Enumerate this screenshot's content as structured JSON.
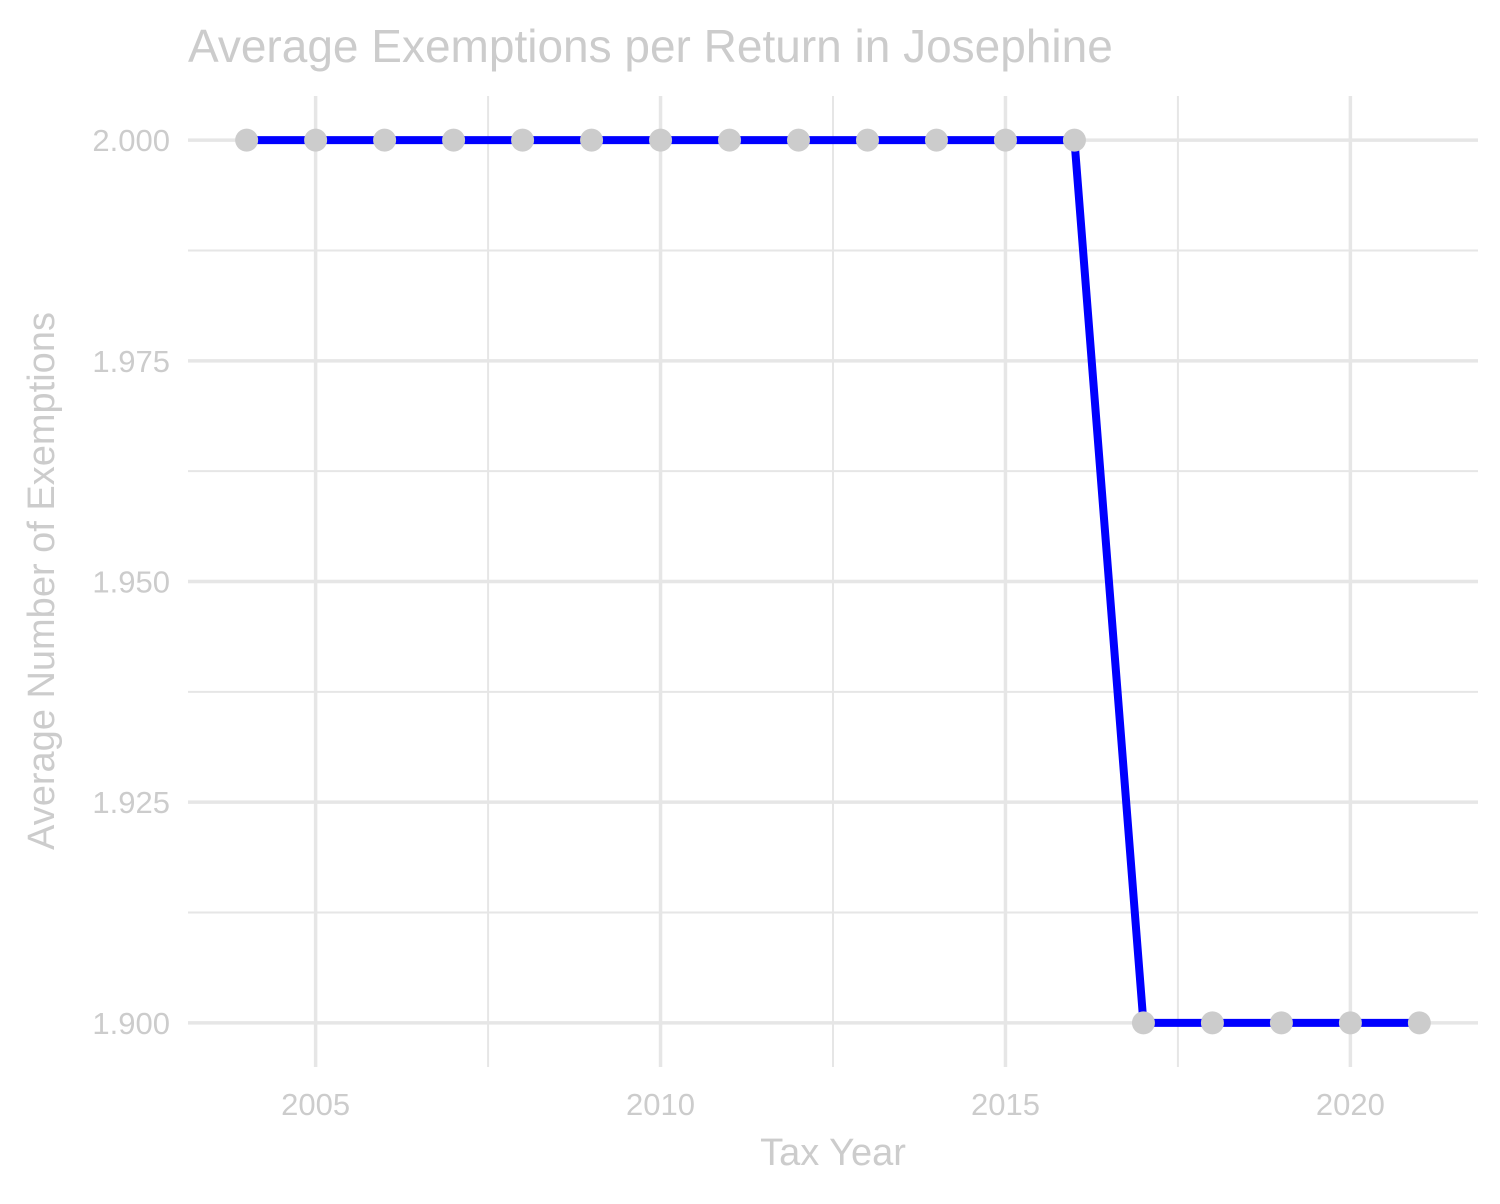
{
  "chart_data": {
    "type": "line",
    "title": "Average Exemptions per Return in Josephine",
    "xlabel": "Tax Year",
    "ylabel": "Average Number of Exemptions",
    "x": [
      2004,
      2005,
      2006,
      2007,
      2008,
      2009,
      2010,
      2011,
      2012,
      2013,
      2014,
      2015,
      2016,
      2017,
      2018,
      2019,
      2020,
      2021
    ],
    "series": [
      {
        "values": [
          2.0,
          2.0,
          2.0,
          2.0,
          2.0,
          2.0,
          2.0,
          2.0,
          2.0,
          2.0,
          2.0,
          2.0,
          2.0,
          1.9,
          1.9,
          1.9,
          1.9,
          1.9
        ],
        "line_color": "#0000ff",
        "point_color": "#cccccc"
      }
    ],
    "xlim": [
      2003.15,
      2021.85
    ],
    "ylim": [
      1.895,
      2.005
    ],
    "xticks": [
      2005,
      2010,
      2015,
      2020
    ],
    "xtick_labels": [
      "2005",
      "2010",
      "2015",
      "2020"
    ],
    "yticks": [
      1.9,
      1.925,
      1.95,
      1.975,
      2.0
    ],
    "ytick_labels": [
      "1.900",
      "1.925",
      "1.950",
      "1.975",
      "2.000"
    ],
    "grid": true,
    "legend": "none",
    "text_color": "#cccccc",
    "grid_color": "#e6e6e6"
  }
}
